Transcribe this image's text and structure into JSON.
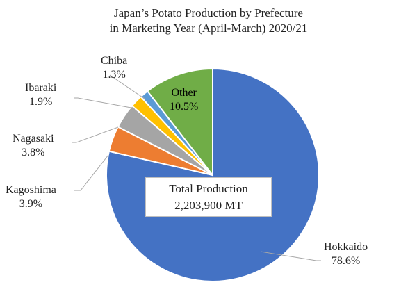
{
  "chart_data": {
    "type": "pie",
    "title_line1": "Japan’s Potato Production by Prefecture",
    "title_line2": "in Marketing Year (April-March) 2020/21",
    "slices": [
      {
        "name": "Hokkaido",
        "value": 78.6,
        "label": "78.6%",
        "color": "#4472c4"
      },
      {
        "name": "Kagoshima",
        "value": 3.9,
        "label": "3.9%",
        "color": "#ed7d31"
      },
      {
        "name": "Nagasaki",
        "value": 3.8,
        "label": "3.8%",
        "color": "#a5a5a5"
      },
      {
        "name": "Ibaraki",
        "value": 1.9,
        "label": "1.9%",
        "color": "#ffc000"
      },
      {
        "name": "Chiba",
        "value": 1.3,
        "label": "1.3%",
        "color": "#5b9bd5"
      },
      {
        "name": "Other",
        "value": 10.5,
        "label": "10.5%",
        "color": "#70ad47"
      }
    ],
    "center_box": {
      "line1": "Total Production",
      "line2": "2,203,900 MT"
    }
  }
}
